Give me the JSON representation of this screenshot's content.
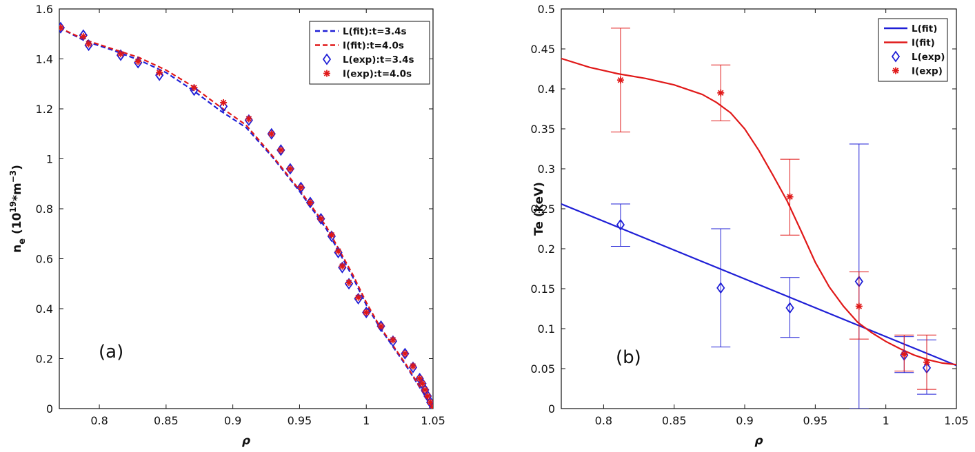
{
  "chart_data": [
    {
      "type": "line",
      "panel": "a",
      "panel_label": "(a)",
      "xlabel": "ρ",
      "ylabel_main": "n",
      "ylabel_sub": "e",
      "ylabel_paren_open": " (10",
      "ylabel_exp": "19",
      "ylabel_mid": "*m",
      "ylabel_exp2": "−3",
      "ylabel_close": ")",
      "xlim": [
        0.77,
        1.05
      ],
      "ylim": [
        0,
        1.6
      ],
      "xticks": [
        "0.8",
        "0.85",
        "0.9",
        "0.95",
        "1",
        "1.05"
      ],
      "xtick_values": [
        0.8,
        0.85,
        0.9,
        0.95,
        1.0,
        1.05
      ],
      "yticks": [
        "0",
        "0.2",
        "0.4",
        "0.6",
        "0.8",
        "1",
        "1.2",
        "1.4",
        "1.6"
      ],
      "ytick_values": [
        0,
        0.2,
        0.4,
        0.6,
        0.8,
        1.0,
        1.2,
        1.4,
        1.6
      ],
      "legend_position": "top-right",
      "series": [
        {
          "name": "L(fit):t=3.4s",
          "kind": "line",
          "dash": "dashed",
          "color": "#1f1fd6",
          "x": [
            0.77,
            0.79,
            0.81,
            0.83,
            0.85,
            0.87,
            0.89,
            0.91,
            0.93,
            0.95,
            0.97,
            0.99,
            1.0,
            1.01,
            1.03,
            1.05
          ],
          "y": [
            1.525,
            1.47,
            1.435,
            1.395,
            1.345,
            1.275,
            1.195,
            1.125,
            1.005,
            0.87,
            0.72,
            0.525,
            0.415,
            0.325,
            0.17,
            0.0
          ]
        },
        {
          "name": "I(fit):t=4.0s",
          "kind": "line",
          "dash": "dashed",
          "color": "#e01818",
          "x": [
            0.77,
            0.79,
            0.81,
            0.83,
            0.85,
            0.87,
            0.89,
            0.91,
            0.93,
            0.95,
            0.97,
            0.99,
            1.0,
            1.01,
            1.03,
            1.05
          ],
          "y": [
            1.525,
            1.475,
            1.44,
            1.405,
            1.355,
            1.29,
            1.21,
            1.135,
            1.01,
            0.875,
            0.73,
            0.535,
            0.425,
            0.33,
            0.175,
            0.0
          ]
        },
        {
          "name": "L(exp):t=3.4s",
          "kind": "marker",
          "marker": "diamond",
          "color": "#1f1fd6",
          "x": [
            0.771,
            0.788,
            0.792,
            0.816,
            0.829,
            0.845,
            0.871,
            0.893,
            0.912,
            0.929,
            0.936,
            0.943,
            0.951,
            0.958,
            0.966,
            0.974,
            0.979,
            0.982,
            0.987,
            0.994,
            1.0,
            1.011,
            1.02,
            1.029,
            1.035,
            1.04,
            1.042,
            1.044,
            1.046,
            1.048,
            1.05
          ],
          "y": [
            1.525,
            1.495,
            1.455,
            1.415,
            1.385,
            1.335,
            1.275,
            1.21,
            1.155,
            1.1,
            1.035,
            0.96,
            0.885,
            0.825,
            0.76,
            0.69,
            0.625,
            0.565,
            0.5,
            0.44,
            0.385,
            0.33,
            0.27,
            0.22,
            0.165,
            0.12,
            0.1,
            0.075,
            0.05,
            0.025,
            0.005
          ]
        },
        {
          "name": "I(exp):t=4.0s",
          "kind": "marker",
          "marker": "asterisk",
          "color": "#e01818",
          "x": [
            0.771,
            0.788,
            0.792,
            0.816,
            0.829,
            0.845,
            0.871,
            0.893,
            0.912,
            0.929,
            0.936,
            0.943,
            0.951,
            0.958,
            0.966,
            0.974,
            0.979,
            0.982,
            0.987,
            0.994,
            1.0,
            1.011,
            1.02,
            1.029,
            1.035,
            1.04,
            1.042,
            1.044,
            1.046,
            1.048,
            1.05
          ],
          "y": [
            1.525,
            1.49,
            1.46,
            1.42,
            1.39,
            1.345,
            1.285,
            1.225,
            1.16,
            1.1,
            1.035,
            0.96,
            0.885,
            0.825,
            0.76,
            0.695,
            0.63,
            0.57,
            0.505,
            0.445,
            0.385,
            0.33,
            0.275,
            0.22,
            0.17,
            0.12,
            0.1,
            0.075,
            0.05,
            0.025,
            0.005
          ]
        }
      ]
    },
    {
      "type": "line",
      "panel": "b",
      "panel_label": "(b)",
      "xlabel": "ρ",
      "ylabel": "Te (keV)",
      "xlim": [
        0.77,
        1.05
      ],
      "ylim": [
        0,
        0.5
      ],
      "xticks": [
        "0.8",
        "0.85",
        "0.9",
        "0.95",
        "1",
        "1.05"
      ],
      "xtick_values": [
        0.8,
        0.85,
        0.9,
        0.95,
        1.0,
        1.05
      ],
      "yticks": [
        "0",
        "0.05",
        "0.1",
        "0.15",
        "0.2",
        "0.25",
        "0.3",
        "0.35",
        "0.4",
        "0.45",
        "0.5"
      ],
      "ytick_values": [
        0,
        0.05,
        0.1,
        0.15,
        0.2,
        0.25,
        0.3,
        0.35,
        0.4,
        0.45,
        0.5
      ],
      "legend_position": "top-right",
      "series": [
        {
          "name": "L(fit)",
          "kind": "line",
          "dash": "solid",
          "color": "#1f1fd6",
          "x": [
            0.77,
            1.05
          ],
          "y": [
            0.256,
            0.054
          ]
        },
        {
          "name": "I(fit)",
          "kind": "line",
          "dash": "solid",
          "color": "#e01818",
          "x": [
            0.77,
            0.79,
            0.81,
            0.83,
            0.85,
            0.87,
            0.88,
            0.89,
            0.9,
            0.91,
            0.92,
            0.93,
            0.94,
            0.95,
            0.96,
            0.97,
            0.98,
            0.99,
            1.0,
            1.01,
            1.02,
            1.03,
            1.04,
            1.05
          ],
          "y": [
            0.438,
            0.427,
            0.419,
            0.413,
            0.405,
            0.393,
            0.383,
            0.37,
            0.35,
            0.323,
            0.292,
            0.26,
            0.222,
            0.183,
            0.152,
            0.128,
            0.108,
            0.095,
            0.084,
            0.075,
            0.067,
            0.061,
            0.057,
            0.055
          ]
        },
        {
          "name": "L(exp)",
          "kind": "marker",
          "marker": "diamond",
          "color": "#1f1fd6",
          "x": [
            0.812,
            0.883,
            0.932,
            0.981,
            1.013,
            1.029
          ],
          "y": [
            0.23,
            0.151,
            0.126,
            0.159,
            0.067,
            0.051
          ],
          "err_low": [
            0.203,
            0.077,
            0.089,
            0.0,
            0.045,
            0.018
          ],
          "err_high": [
            0.256,
            0.225,
            0.164,
            0.331,
            0.09,
            0.086
          ]
        },
        {
          "name": "I(exp)",
          "kind": "marker",
          "marker": "asterisk",
          "color": "#e01818",
          "x": [
            0.812,
            0.883,
            0.932,
            0.981,
            1.013,
            1.029
          ],
          "y": [
            0.411,
            0.395,
            0.265,
            0.128,
            0.068,
            0.058
          ],
          "err_low": [
            0.346,
            0.36,
            0.217,
            0.087,
            0.047,
            0.024
          ],
          "err_high": [
            0.476,
            0.43,
            0.312,
            0.171,
            0.092,
            0.092
          ]
        }
      ]
    }
  ]
}
